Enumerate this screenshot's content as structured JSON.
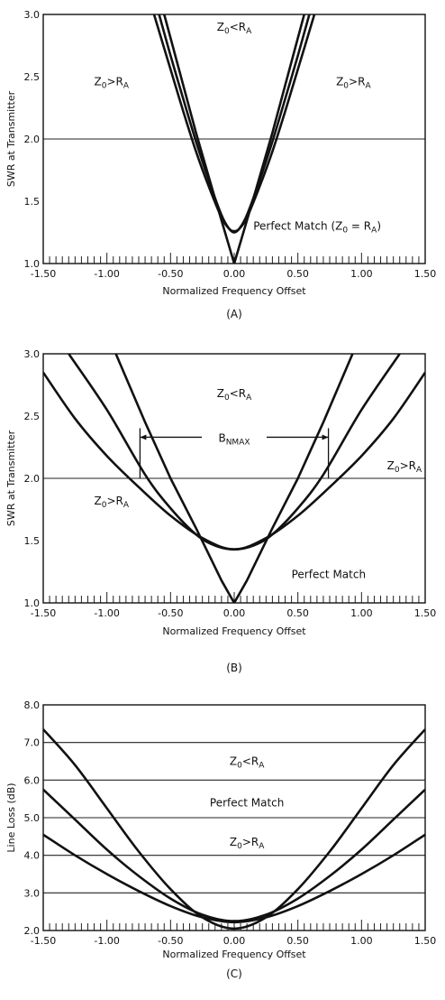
{
  "chart_data": [
    {
      "type": "line",
      "panel_label": "(A)",
      "xlabel": "Normalized Frequency Offset",
      "ylabel": "SWR at Transmitter",
      "xlim": [
        -1.5,
        1.5
      ],
      "ylim": [
        1.0,
        3.0
      ],
      "x_ticks": [
        "-1.50",
        "-1.00",
        "-0.50",
        "0.00",
        "0.50",
        "1.00",
        "1.50"
      ],
      "y_ticks": [
        "1.0",
        "1.5",
        "2.0",
        "2.5",
        "3.0"
      ],
      "x_minor_step": 0.05,
      "hlines": [
        2.0
      ],
      "series": [
        {
          "name": "Z0<RA",
          "x": [
            -0.59,
            -0.5,
            -0.4,
            -0.3,
            -0.2,
            -0.1,
            -0.04,
            0,
            0.04,
            0.1,
            0.2,
            0.3,
            0.4,
            0.5,
            0.59
          ],
          "y": [
            3.0,
            2.67,
            2.32,
            1.98,
            1.67,
            1.39,
            1.28,
            1.25,
            1.28,
            1.39,
            1.67,
            1.98,
            2.32,
            2.67,
            3.0
          ]
        },
        {
          "name": "Z0>RA",
          "x": [
            -0.63,
            -0.5,
            -0.4,
            -0.3,
            -0.2,
            -0.1,
            -0.04,
            0,
            0.04,
            0.1,
            0.2,
            0.3,
            0.4,
            0.5,
            0.63
          ],
          "y": [
            3.0,
            2.56,
            2.22,
            1.9,
            1.62,
            1.37,
            1.28,
            1.26,
            1.28,
            1.37,
            1.62,
            1.9,
            2.22,
            2.56,
            3.0
          ]
        },
        {
          "name": "Perfect Match",
          "x": [
            -0.55,
            -0.45,
            -0.3,
            -0.15,
            0,
            0.15,
            0.3,
            0.45,
            0.55
          ],
          "y": [
            3.0,
            2.62,
            2.05,
            1.52,
            1.0,
            1.52,
            2.05,
            2.62,
            3.0
          ]
        }
      ],
      "annotations": [
        {
          "text": "Z0<RA",
          "parts": [
            "Z",
            "0",
            "<R",
            "A"
          ],
          "x": 0.0,
          "y": 2.9
        },
        {
          "text": "Z0>RA",
          "parts": [
            "Z",
            "0",
            ">R",
            "A"
          ],
          "x": -1.1,
          "y": 2.46
        },
        {
          "text": "Z0>RA",
          "parts": [
            "Z",
            "0",
            ">R",
            "A"
          ],
          "x": 0.8,
          "y": 2.46
        },
        {
          "text": "Perfect Match (Z0 = RA)",
          "parts": [
            "Perfect Match (Z",
            "0",
            " = R",
            "A",
            ")"
          ],
          "x": 0.15,
          "y": 1.3
        }
      ]
    },
    {
      "type": "line",
      "panel_label": "(B)",
      "xlabel": "Normalized Frequency Offset",
      "ylabel": "SWR at Transmitter",
      "xlim": [
        -1.5,
        1.5
      ],
      "ylim": [
        1.0,
        3.0
      ],
      "x_ticks": [
        "-1.50",
        "-1.00",
        "-0.50",
        "0.00",
        "0.50",
        "1.00",
        "1.50"
      ],
      "y_ticks": [
        "1.0",
        "1.5",
        "2.0",
        "2.5",
        "3.0"
      ],
      "x_minor_step": 0.05,
      "hlines": [
        2.0
      ],
      "series": [
        {
          "name": "Z0<RA",
          "x": [
            -1.3,
            -1.0,
            -0.7,
            -0.5,
            -0.3,
            -0.15,
            0,
            0.15,
            0.3,
            0.5,
            0.7,
            1.0,
            1.3
          ],
          "y": [
            3.0,
            2.55,
            2.03,
            1.76,
            1.55,
            1.46,
            1.43,
            1.46,
            1.55,
            1.76,
            2.03,
            2.55,
            3.0
          ]
        },
        {
          "name": "Z0>RA",
          "x": [
            -1.5,
            -1.25,
            -1.0,
            -0.75,
            -0.5,
            -0.25,
            0,
            0.25,
            0.5,
            0.75,
            1.0,
            1.25,
            1.5
          ],
          "y": [
            2.85,
            2.48,
            2.18,
            1.93,
            1.7,
            1.52,
            1.43,
            1.52,
            1.7,
            1.93,
            2.18,
            2.48,
            2.85
          ]
        },
        {
          "name": "Perfect Match",
          "x": [
            -0.93,
            -0.7,
            -0.5,
            -0.3,
            -0.1,
            0,
            0.1,
            0.3,
            0.5,
            0.7,
            0.93
          ],
          "y": [
            3.0,
            2.45,
            2.0,
            1.6,
            1.18,
            1.0,
            1.18,
            1.6,
            2.0,
            2.45,
            3.0
          ]
        }
      ],
      "bracket": {
        "label": "BNMAX",
        "parts": [
          "B",
          "NMAX"
        ],
        "x1": -0.74,
        "x2": 0.74,
        "y": 2.33
      },
      "annotations": [
        {
          "text": "Z0<RA",
          "parts": [
            "Z",
            "0",
            "<R",
            "A"
          ],
          "x": 0.0,
          "y": 2.68
        },
        {
          "text": "Z0>RA",
          "parts": [
            "Z",
            "0",
            ">R",
            "A"
          ],
          "x": 1.2,
          "y": 2.1
        },
        {
          "text": "Z0>RA",
          "parts": [
            "Z",
            "0",
            ">R",
            "A"
          ],
          "x": -1.1,
          "y": 1.82
        },
        {
          "text": "Perfect Match",
          "parts": [
            "Perfect Match"
          ],
          "x": 0.45,
          "y": 1.23
        }
      ]
    },
    {
      "type": "line",
      "panel_label": "(C)",
      "xlabel": "Normalized Frequency Offset",
      "ylabel": "Line Loss (dB)",
      "xlim": [
        -1.5,
        1.5
      ],
      "ylim": [
        2.0,
        8.0
      ],
      "x_ticks": [
        "-1.50",
        "-1.00",
        "-0.50",
        "0.00",
        "0.50",
        "1.00",
        "1.50"
      ],
      "y_ticks": [
        "2.0",
        "3.0",
        "4.0",
        "5.0",
        "6.0",
        "7.0",
        "8.0"
      ],
      "x_minor_step": 0.05,
      "hlines": [
        3.0,
        4.0,
        5.0,
        6.0,
        7.0
      ],
      "series": [
        {
          "name": "Z0<RA",
          "x": [
            -1.5,
            -1.25,
            -1.0,
            -0.75,
            -0.5,
            -0.25,
            0,
            0.25,
            0.5,
            0.75,
            1.0,
            1.25,
            1.5
          ],
          "y": [
            7.35,
            6.4,
            5.25,
            4.1,
            3.1,
            2.35,
            2.05,
            2.35,
            3.1,
            4.1,
            5.25,
            6.4,
            7.35
          ]
        },
        {
          "name": "Perfect Match",
          "x": [
            -1.5,
            -1.25,
            -1.0,
            -0.75,
            -0.5,
            -0.25,
            0,
            0.25,
            0.5,
            0.75,
            1.0,
            1.25,
            1.5
          ],
          "y": [
            5.75,
            4.95,
            4.15,
            3.45,
            2.85,
            2.42,
            2.25,
            2.42,
            2.85,
            3.45,
            4.15,
            4.95,
            5.75
          ]
        },
        {
          "name": "Z0>RA",
          "x": [
            -1.5,
            -1.25,
            -1.0,
            -0.75,
            -0.5,
            -0.25,
            0,
            0.25,
            0.5,
            0.75,
            1.0,
            1.25,
            1.5
          ],
          "y": [
            4.55,
            4.0,
            3.5,
            3.05,
            2.65,
            2.35,
            2.22,
            2.35,
            2.65,
            3.05,
            3.5,
            4.0,
            4.55
          ]
        }
      ],
      "annotations": [
        {
          "text": "Z0<RA",
          "parts": [
            "Z",
            "0",
            "<R",
            "A"
          ],
          "x": 0.1,
          "y": 6.5
        },
        {
          "text": "Perfect Match",
          "parts": [
            "Perfect Match"
          ],
          "x": 0.1,
          "y": 5.4
        },
        {
          "text": "Z0>RA",
          "parts": [
            "Z",
            "0",
            ">R",
            "A"
          ],
          "x": 0.1,
          "y": 4.35
        }
      ]
    }
  ]
}
